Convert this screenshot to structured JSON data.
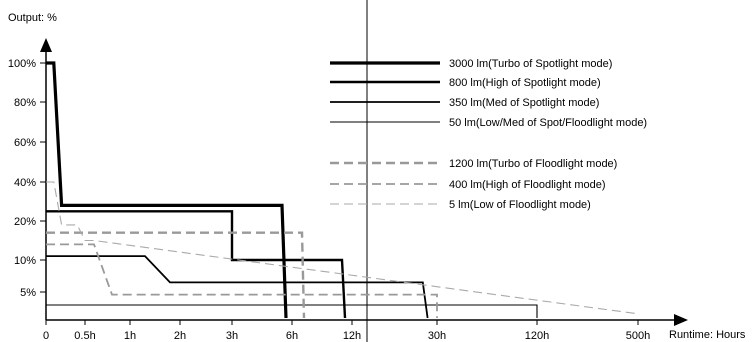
{
  "chart_data": {
    "type": "line",
    "ylabel": "Output: %",
    "xlabel": "Runtime: Hours",
    "y_ticks": [
      "100%",
      "80%",
      "60%",
      "40%",
      "20%",
      "10%",
      "5%"
    ],
    "x_ticks": [
      "0",
      "0.5h",
      "1h",
      "2h",
      "3h",
      "6h",
      "12h",
      "30h",
      "120h",
      "500h"
    ],
    "series": [
      {
        "name": "3000 lm(Turbo of Spotlight mode)",
        "color": "#000000",
        "dash": "solid",
        "weight": "heavy",
        "points": [
          [
            "0",
            "100%"
          ],
          [
            "0.1h",
            "100%"
          ],
          [
            "0.2h",
            "28%"
          ],
          [
            "5.5h",
            "28%"
          ],
          [
            "5.7h",
            "0"
          ]
        ]
      },
      {
        "name": "800 lm(High of Spotlight mode)",
        "color": "#000000",
        "dash": "solid",
        "weight": "bold",
        "points": [
          [
            "0",
            "25%"
          ],
          [
            "3h",
            "25%"
          ],
          [
            "3h",
            "10%"
          ],
          [
            "11h",
            "10%"
          ],
          [
            "11.3h",
            "0"
          ]
        ]
      },
      {
        "name": "350 lm(Med of Spotlight mode)",
        "color": "#000000",
        "dash": "solid",
        "weight": "medium",
        "points": [
          [
            "0",
            "11%"
          ],
          [
            "1.3h",
            "11%"
          ],
          [
            "1.8h",
            "6.5%"
          ],
          [
            "27h",
            "6.5%"
          ],
          [
            "28h",
            "0"
          ]
        ]
      },
      {
        "name": "50 lm(Low/Med of Spot/Floodlight mode)",
        "color": "#000000",
        "dash": "solid",
        "weight": "thin",
        "points": [
          [
            "0",
            "2.5%"
          ],
          [
            "120h",
            "2.5%"
          ],
          [
            "120h",
            "0"
          ]
        ]
      },
      {
        "name": "1200 lm(Turbo of Floodlight mode)",
        "color": "#999999",
        "dash": "dashed",
        "weight": "bold",
        "points": [
          [
            "0",
            "17%"
          ],
          [
            "7h",
            "17%"
          ],
          [
            "7.2h",
            "0"
          ]
        ]
      },
      {
        "name": "400 lm(High of Floodlight mode)",
        "color": "#999999",
        "dash": "dashed",
        "weight": "medium",
        "points": [
          [
            "0",
            "14%"
          ],
          [
            "0.6h",
            "14%"
          ],
          [
            "0.8h",
            "4.5%"
          ],
          [
            "30h",
            "4.5%"
          ],
          [
            "30h",
            "0"
          ]
        ]
      },
      {
        "name": "5 lm(Low of Floodlight mode)",
        "color": "#aaaaaa",
        "dash": "dashed",
        "weight": "thin",
        "points": [
          [
            "0",
            "40%"
          ],
          [
            "0.1h",
            "40%"
          ],
          [
            "0.2h",
            "19%"
          ],
          [
            "0.4h",
            "19%"
          ],
          [
            "0.5h",
            "15%"
          ],
          [
            "0.6h",
            "15%"
          ],
          [
            "500h",
            "0.8%"
          ]
        ]
      }
    ],
    "legend_position": "top-right"
  }
}
